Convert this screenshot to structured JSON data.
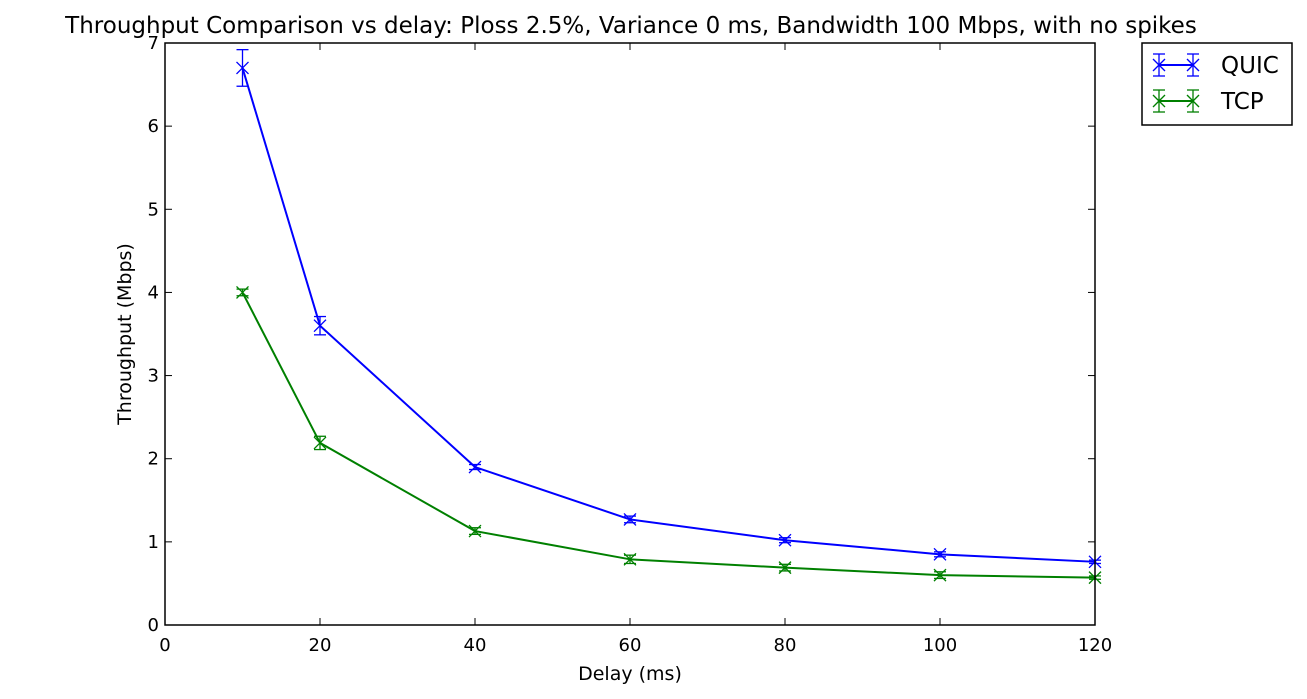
{
  "chart_data": {
    "type": "line",
    "title": "Throughput Comparison vs delay: Ploss 2.5%, Variance 0 ms, Bandwidth 100 Mbps, with no spikes",
    "xlabel": "Delay (ms)",
    "ylabel": "Throughput (Mbps)",
    "xlim": [
      0,
      120
    ],
    "ylim": [
      0,
      7
    ],
    "xticks": [
      0,
      20,
      40,
      60,
      80,
      100,
      120
    ],
    "yticks": [
      0,
      1,
      2,
      3,
      4,
      5,
      6,
      7
    ],
    "grid": false,
    "legend_position": "outside-top-right",
    "x": [
      10,
      20,
      40,
      60,
      80,
      100,
      120
    ],
    "series": [
      {
        "name": "QUIC",
        "color": "#0000ff",
        "marker": "x",
        "values": [
          6.7,
          3.6,
          1.9,
          1.27,
          1.02,
          0.85,
          0.76
        ],
        "errors": [
          0.22,
          0.11,
          0.03,
          0.04,
          0.03,
          0.03,
          0.02
        ]
      },
      {
        "name": "TCP",
        "color": "#008000",
        "marker": "x",
        "values": [
          4.0,
          2.19,
          1.13,
          0.79,
          0.69,
          0.6,
          0.57
        ],
        "errors": [
          0.04,
          0.08,
          0.04,
          0.05,
          0.04,
          0.04,
          0.02
        ]
      }
    ]
  }
}
